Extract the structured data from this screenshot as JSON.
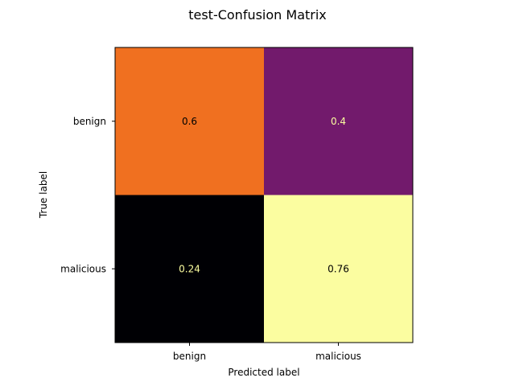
{
  "chart_data": {
    "type": "heatmap",
    "title": "test-Confusion Matrix",
    "xlabel": "Predicted label",
    "ylabel": "True label",
    "x_categories": [
      "benign",
      "malicious"
    ],
    "y_categories": [
      "benign",
      "malicious"
    ],
    "values": [
      [
        0.6,
        0.4
      ],
      [
        0.24,
        0.76
      ]
    ],
    "value_labels": [
      [
        "0.6",
        "0.4"
      ],
      [
        "0.24",
        "0.76"
      ]
    ],
    "cell_colors": [
      [
        "#f07020",
        "#721a6c"
      ],
      [
        "#000004",
        "#fbfda0"
      ]
    ],
    "text_colors": [
      [
        "#000000",
        "#fbfda0"
      ],
      [
        "#fbfda0",
        "#000000"
      ]
    ],
    "colormap": "inferno",
    "grid": false
  }
}
